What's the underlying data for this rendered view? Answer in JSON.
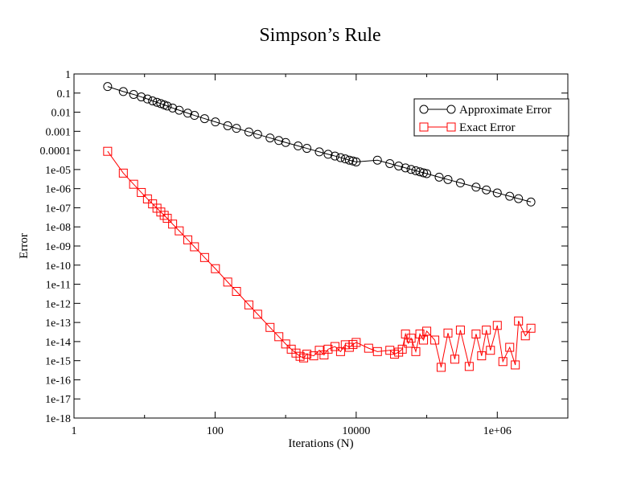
{
  "chart_data": {
    "type": "scatter",
    "title": "Simpson’s Rule",
    "xlabel": "Iterations (N)",
    "ylabel": "Error",
    "xscale": "log",
    "yscale": "log",
    "xlim": [
      1,
      10000000
    ],
    "ylim": [
      1e-18,
      1
    ],
    "x_ticks": [
      {
        "value": 1,
        "label": "1"
      },
      {
        "value": 100,
        "label": "100"
      },
      {
        "value": 10000,
        "label": "10000"
      },
      {
        "value": 1000000,
        "label": "1e+06"
      }
    ],
    "y_ticks": [
      {
        "value": 1,
        "label": "1"
      },
      {
        "value": 0.1,
        "label": "0.1"
      },
      {
        "value": 0.01,
        "label": "0.01"
      },
      {
        "value": 0.001,
        "label": "0.001"
      },
      {
        "value": 0.0001,
        "label": "0.0001"
      },
      {
        "value": 1e-05,
        "label": "1e-05"
      },
      {
        "value": 1e-06,
        "label": "1e-06"
      },
      {
        "value": 1e-07,
        "label": "1e-07"
      },
      {
        "value": 1e-08,
        "label": "1e-08"
      },
      {
        "value": 1e-09,
        "label": "1e-09"
      },
      {
        "value": 1e-10,
        "label": "1e-10"
      },
      {
        "value": 1e-11,
        "label": "1e-11"
      },
      {
        "value": 1e-12,
        "label": "1e-12"
      },
      {
        "value": 1e-13,
        "label": "1e-13"
      },
      {
        "value": 1e-14,
        "label": "1e-14"
      },
      {
        "value": 1e-15,
        "label": "1e-15"
      },
      {
        "value": 1e-16,
        "label": "1e-16"
      },
      {
        "value": 1e-17,
        "label": "1e-17"
      },
      {
        "value": 1e-18,
        "label": "1e-18"
      }
    ],
    "grid": false,
    "legend_position": "top-right",
    "series": [
      {
        "name": "Approximate Error",
        "color": "#000000",
        "marker": "circle",
        "x": [
          3,
          5,
          7,
          9,
          11,
          13,
          15,
          17,
          19,
          21,
          25,
          31,
          41,
          51,
          71,
          101,
          151,
          201,
          301,
          401,
          601,
          801,
          1001,
          1501,
          2001,
          3001,
          4001,
          5001,
          6001,
          7001,
          8001,
          9001,
          10001,
          20001,
          30001,
          40001,
          50001,
          60001,
          70001,
          80001,
          90001,
          100001,
          150001,
          200001,
          300001,
          500001,
          700001,
          1000001,
          1500001,
          2000001,
          3000001
        ],
        "y": [
          0.22,
          0.12,
          0.085,
          0.063,
          0.049,
          0.039,
          0.033,
          0.028,
          0.024,
          0.021,
          0.0166,
          0.0127,
          0.0089,
          0.0068,
          0.0046,
          0.0031,
          0.00195,
          0.00143,
          0.00093,
          0.00069,
          0.00045,
          0.00033,
          0.00026,
          0.000172,
          0.000128,
          8.4e-05,
          6.3e-05,
          5.1e-05,
          4.2e-05,
          3.6e-05,
          3.1e-05,
          2.8e-05,
          2.5e-05,
          3.1e-05,
          2.05e-05,
          1.53e-05,
          1.22e-05,
          1.01e-05,
          8.7e-06,
          7.6e-06,
          6.7e-06,
          6.1e-06,
          4e-06,
          3e-06,
          2e-06,
          1.2e-06,
          8.6e-07,
          6e-07,
          4e-07,
          3e-07,
          2e-07
        ]
      },
      {
        "name": "Exact Error",
        "color": "#ff0000",
        "marker": "square",
        "x": [
          3,
          5,
          7,
          9,
          11,
          13,
          15,
          17,
          19,
          21,
          25,
          31,
          41,
          51,
          71,
          101,
          151,
          201,
          301,
          401,
          601,
          801,
          1001,
          1201,
          1401,
          1601,
          1801,
          2001,
          2501,
          3001,
          3501,
          4001,
          5001,
          6001,
          7001,
          8001,
          9001,
          10001,
          15001,
          20001,
          30001,
          35001,
          40001,
          45001,
          50001,
          55001,
          60001,
          70001,
          80001,
          90001,
          100001,
          130001,
          160001,
          200001,
          250001,
          300001,
          400001,
          500001,
          600001,
          700001,
          800001,
          1000001,
          1200001,
          1500001,
          1800001,
          2000001,
          2500001,
          3000001
        ],
        "y": [
          9e-05,
          6.5e-06,
          1.7e-06,
          6.3e-07,
          2.9e-07,
          1.6e-07,
          9.5e-08,
          6e-08,
          4e-08,
          2.8e-08,
          1.4e-08,
          6.2e-09,
          2.1e-09,
          9.1e-10,
          2.5e-10,
          6.5e-11,
          1.3e-11,
          4.2e-12,
          8.3e-13,
          2.7e-13,
          5.5e-14,
          1.8e-14,
          7.5e-15,
          4e-15,
          2.5e-15,
          1.7e-15,
          1.4e-15,
          2.2e-15,
          1.8e-15,
          3.5e-15,
          2e-15,
          4e-15,
          5.5e-15,
          3e-15,
          6.8e-15,
          5e-15,
          7e-15,
          9e-15,
          4.5e-15,
          3e-15,
          3.5e-15,
          2.2e-15,
          2.8e-15,
          4e-15,
          2.5e-14,
          8.2e-15,
          1.5e-14,
          3e-15,
          2.5e-14,
          1.2e-14,
          3.5e-14,
          1.2e-14,
          4.5e-16,
          2.8e-14,
          1.2e-15,
          4e-14,
          5e-16,
          2.5e-14,
          1.8e-15,
          4e-14,
          3.5e-15,
          7e-14,
          9e-16,
          5e-15,
          6e-16,
          1.2e-13,
          2e-14,
          5e-14
        ]
      }
    ]
  }
}
